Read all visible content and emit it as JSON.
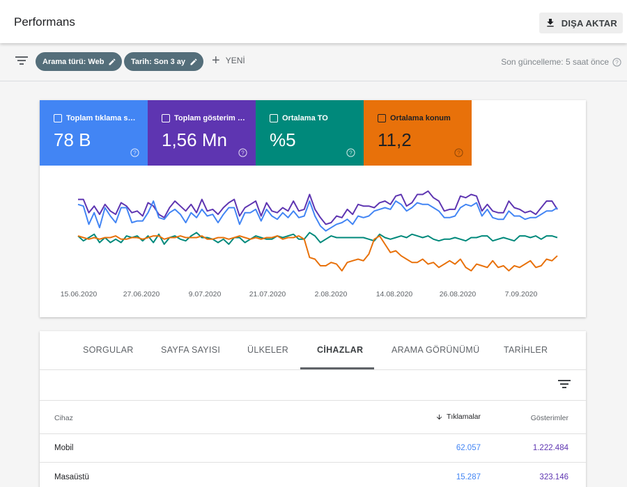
{
  "header": {
    "title": "Performans",
    "export_label": "DIŞA AKTAR"
  },
  "filters": {
    "search_type_chip": "Arama türü: Web",
    "date_chip": "Tarih: Son 3 ay",
    "new_label": "YENİ",
    "last_update": "Son güncelleme: 5 saat önce"
  },
  "metrics": [
    {
      "label": "Toplam tıklama sayısı",
      "value": "78 B",
      "color": "#4285f4"
    },
    {
      "label": "Toplam gösterim sayısı",
      "value": "1,56 Mn",
      "color": "#5e35b1"
    },
    {
      "label": "Ortalama TO",
      "value": "%5",
      "color": "#00897b"
    },
    {
      "label": "Ortalama konum",
      "value": "11,2",
      "color": "#e8710a"
    }
  ],
  "chart_data": {
    "type": "line",
    "x_tick_labels": [
      "15.06.2020",
      "27.06.2020",
      "9.07.2020",
      "21.07.2020",
      "2.08.2020",
      "14.08.2020",
      "26.08.2020",
      "7.09.2020"
    ],
    "grid": false,
    "y_axis_visible": false,
    "series": [
      {
        "name": "Toplam gösterim",
        "color": "#5e35b1",
        "values": [
          53,
          53,
          45,
          49,
          44,
          50,
          46,
          44,
          51,
          49,
          45,
          46,
          43,
          51,
          49,
          44,
          42,
          48,
          52,
          49,
          46,
          50,
          45,
          53,
          46,
          47,
          44,
          48,
          51,
          53,
          43,
          48,
          50,
          52,
          43,
          51,
          46,
          45,
          48,
          46,
          52,
          46,
          47,
          56,
          47,
          42,
          38,
          39,
          43,
          42,
          47,
          44,
          50,
          49,
          49,
          48,
          51,
          52,
          50,
          55,
          56,
          49,
          51,
          56,
          56,
          58,
          54,
          52,
          46,
          47,
          47,
          55,
          54,
          56,
          55,
          46,
          50,
          46,
          45,
          45,
          52,
          48,
          47,
          45,
          46,
          44,
          48,
          52,
          52,
          47
        ]
      },
      {
        "name": "Toplam tıklama",
        "color": "#4285f4",
        "values": [
          50,
          49,
          38,
          45,
          36,
          48,
          43,
          39,
          48,
          48,
          39,
          40,
          40,
          45,
          52,
          42,
          41,
          45,
          47,
          44,
          39,
          45,
          42,
          47,
          43,
          44,
          39,
          44,
          48,
          48,
          38,
          45,
          45,
          47,
          40,
          47,
          43,
          41,
          45,
          42,
          46,
          42,
          43,
          52,
          43,
          37,
          34,
          36,
          38,
          39,
          41,
          38,
          43,
          42,
          43,
          46,
          47,
          48,
          47,
          52,
          50,
          46,
          48,
          51,
          50,
          50,
          48,
          46,
          42,
          42,
          43,
          48,
          50,
          49,
          51,
          43,
          47,
          42,
          41,
          41,
          46,
          43,
          43,
          41,
          42,
          42,
          44,
          46,
          46,
          48
        ]
      },
      {
        "name": "Ortalama TO",
        "color": "#00897b",
        "values": [
          31,
          28,
          30,
          32,
          27,
          30,
          27,
          29,
          27,
          31,
          30,
          31,
          28,
          31,
          27,
          32,
          26,
          30,
          31,
          29,
          28,
          31,
          33,
          30,
          30,
          29,
          27,
          29,
          26,
          30,
          30,
          27,
          29,
          31,
          30,
          29,
          29,
          31,
          30,
          31,
          32,
          29,
          29,
          33,
          31,
          27,
          29,
          31,
          30,
          30,
          30,
          30,
          30,
          30,
          29,
          28,
          32,
          30,
          29,
          30,
          31,
          30,
          32,
          31,
          30,
          31,
          29,
          28,
          29,
          29,
          30,
          29,
          28,
          30,
          30,
          31,
          31,
          28,
          29,
          30,
          29,
          28,
          31,
          31,
          30,
          31,
          29,
          31,
          31,
          30
        ]
      },
      {
        "name": "Ortalama konum",
        "color": "#e8710a",
        "values": [
          31,
          30,
          29,
          30,
          29,
          30,
          30,
          31,
          29,
          29,
          30,
          30,
          29,
          30,
          31,
          31,
          29,
          30,
          30,
          31,
          30,
          30,
          30,
          31,
          29,
          29,
          30,
          30,
          29,
          30,
          31,
          30,
          29,
          30,
          29,
          30,
          30,
          31,
          29,
          30,
          30,
          31,
          29,
          18,
          17,
          13,
          13,
          15,
          14,
          10,
          15,
          16,
          17,
          16,
          20,
          29,
          31,
          26,
          21,
          22,
          19,
          17,
          15,
          15,
          17,
          14,
          15,
          12,
          14,
          16,
          14,
          17,
          12,
          10,
          14,
          13,
          12,
          16,
          12,
          13,
          10,
          13,
          12,
          14,
          16,
          12,
          13,
          17,
          16,
          19
        ]
      }
    ]
  },
  "table": {
    "tabs": [
      "SORGULAR",
      "SAYFA SAYISI",
      "ÜLKELER",
      "CİHAZLAR",
      "ARAMA GÖRÜNÜMÜ",
      "TARİHLER"
    ],
    "active_tab": "CİHAZLAR",
    "columns": {
      "device": "Cihaz",
      "clicks": "Tıklamalar",
      "impressions": "Gösterimler"
    },
    "rows": [
      {
        "device": "Mobil",
        "clicks": "62.057",
        "impressions": "1.222.484"
      },
      {
        "device": "Masaüstü",
        "clicks": "15.287",
        "impressions": "323.146"
      }
    ]
  }
}
